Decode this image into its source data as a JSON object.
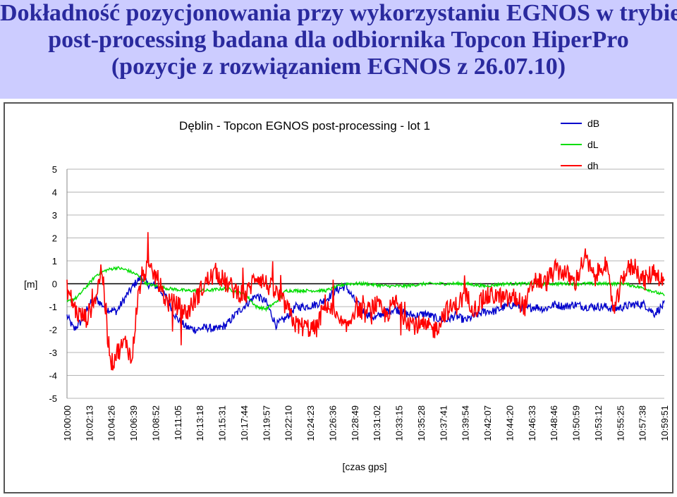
{
  "slide": {
    "title_lines": [
      "Dokładność pozycjonowania przy wykorzystaniu EGNOS w trybie",
      "post-processing badana dla odbiornika Topcon HiperPro",
      "(pozycje z rozwiązaniem EGNOS z 26.07.10)"
    ]
  },
  "chart_data": {
    "type": "line",
    "title": "Dęblin - Topcon EGNOS post-processing - lot 1",
    "xlabel": "[czas gps]",
    "ylabel": "[m]",
    "ylim": [
      -5,
      5
    ],
    "yticks": [
      "5",
      "4",
      "3",
      "2",
      "1",
      "0",
      "-1",
      "-2",
      "-3",
      "-4",
      "-5"
    ],
    "xticks": [
      "10:00:00",
      "10:02:13",
      "10:04:26",
      "10:06:39",
      "10:08:52",
      "10:11:05",
      "10:13:18",
      "10:15:31",
      "10:17:44",
      "10:19:57",
      "10:22:10",
      "10:24:23",
      "10:26:36",
      "10:28:49",
      "10:31:02",
      "10:33:15",
      "10:35:28",
      "10:37:41",
      "10:39:54",
      "10:42:07",
      "10:44:20",
      "10:46:33",
      "10:48:46",
      "10:50:59",
      "10:53:12",
      "10:55:25",
      "10:57:38",
      "10:59:51"
    ],
    "xlim_minutes": [
      0,
      60
    ],
    "grid": "horizontal",
    "legend_position": "top-right",
    "series_colors": {
      "dB": "#0000cc",
      "dL": "#00dd00",
      "dh": "#ff0000"
    },
    "series": [
      {
        "name": "dB",
        "noise": 0.18,
        "points": [
          [
            0,
            -1.4
          ],
          [
            0.7,
            -2.0
          ],
          [
            1.5,
            -1.6
          ],
          [
            2.2,
            -0.9
          ],
          [
            3.0,
            -0.7
          ],
          [
            4.0,
            -1.1
          ],
          [
            5.0,
            -1.2
          ],
          [
            6.0,
            -0.5
          ],
          [
            7.0,
            0.1
          ],
          [
            7.5,
            0.3
          ],
          [
            8.0,
            0.0
          ],
          [
            9.0,
            -0.1
          ],
          [
            10.0,
            -0.6
          ],
          [
            11.0,
            -1.5
          ],
          [
            12.0,
            -1.9
          ],
          [
            13.0,
            -2.0
          ],
          [
            14.0,
            -1.9
          ],
          [
            15.0,
            -2.0
          ],
          [
            16.0,
            -1.8
          ],
          [
            17.0,
            -1.3
          ],
          [
            18.0,
            -0.9
          ],
          [
            19.0,
            -0.5
          ],
          [
            20.0,
            -0.8
          ],
          [
            21.0,
            -1.8
          ],
          [
            22.0,
            -1.5
          ],
          [
            23.0,
            -1.0
          ],
          [
            24.0,
            -1.0
          ],
          [
            25.0,
            -0.9
          ],
          [
            26.0,
            -0.7
          ],
          [
            27.0,
            -0.3
          ],
          [
            28.0,
            -0.1
          ],
          [
            29.0,
            -0.8
          ],
          [
            30.0,
            -1.3
          ],
          [
            31.0,
            -1.5
          ],
          [
            32.0,
            -1.2
          ],
          [
            33.0,
            -1.1
          ],
          [
            34.0,
            -1.3
          ],
          [
            35.0,
            -1.4
          ],
          [
            36.0,
            -1.3
          ],
          [
            37.0,
            -1.5
          ],
          [
            38.0,
            -1.6
          ],
          [
            39.0,
            -1.4
          ],
          [
            40.0,
            -1.6
          ],
          [
            41.0,
            -1.4
          ],
          [
            42.0,
            -1.2
          ],
          [
            43.0,
            -1.2
          ],
          [
            44.0,
            -1.0
          ],
          [
            45.0,
            -0.9
          ],
          [
            46.0,
            -1.1
          ],
          [
            47.0,
            -1.0
          ],
          [
            48.0,
            -1.1
          ],
          [
            49.0,
            -0.9
          ],
          [
            50.0,
            -1.0
          ],
          [
            51.0,
            -0.9
          ],
          [
            52.0,
            -1.0
          ],
          [
            53.0,
            -1.0
          ],
          [
            54.0,
            -1.0
          ],
          [
            55.0,
            -1.1
          ],
          [
            56.0,
            -1.0
          ],
          [
            57.0,
            -0.9
          ],
          [
            58.0,
            -0.9
          ],
          [
            59.0,
            -1.3
          ],
          [
            60.0,
            -0.9
          ]
        ]
      },
      {
        "name": "dL",
        "noise": 0.07,
        "points": [
          [
            0,
            -0.8
          ],
          [
            1.0,
            -0.6
          ],
          [
            2.0,
            -0.1
          ],
          [
            3.0,
            0.4
          ],
          [
            4.0,
            0.6
          ],
          [
            5.0,
            0.7
          ],
          [
            6.0,
            0.6
          ],
          [
            7.0,
            0.4
          ],
          [
            8.0,
            0.0
          ],
          [
            10.0,
            -0.2
          ],
          [
            12.0,
            -0.3
          ],
          [
            14.0,
            -0.3
          ],
          [
            16.0,
            -0.2
          ],
          [
            18.0,
            -0.5
          ],
          [
            19.0,
            -1.0
          ],
          [
            20.0,
            -1.1
          ],
          [
            21.0,
            -0.8
          ],
          [
            22.0,
            -0.3
          ],
          [
            24.0,
            -0.3
          ],
          [
            26.0,
            -0.3
          ],
          [
            28.0,
            0.0
          ],
          [
            30.0,
            0.0
          ],
          [
            32.0,
            -0.1
          ],
          [
            34.0,
            -0.1
          ],
          [
            36.0,
            0.0
          ],
          [
            38.0,
            0.0
          ],
          [
            40.0,
            0.0
          ],
          [
            42.0,
            -0.1
          ],
          [
            44.0,
            0.0
          ],
          [
            46.0,
            0.0
          ],
          [
            48.0,
            0.0
          ],
          [
            50.0,
            0.0
          ],
          [
            52.0,
            0.0
          ],
          [
            54.0,
            0.0
          ],
          [
            56.0,
            0.0
          ],
          [
            58.0,
            -0.2
          ],
          [
            60.0,
            -0.5
          ]
        ]
      },
      {
        "name": "dh",
        "noise": 0.45,
        "points": [
          [
            0,
            -0.2
          ],
          [
            1.0,
            -1.3
          ],
          [
            2.0,
            -1.5
          ],
          [
            3.0,
            -0.4
          ],
          [
            3.5,
            0.8
          ],
          [
            4.0,
            -2.0
          ],
          [
            4.5,
            -3.5
          ],
          [
            5.0,
            -3.0
          ],
          [
            6.0,
            -2.5
          ],
          [
            6.5,
            -3.5
          ],
          [
            7.0,
            -1.0
          ],
          [
            7.5,
            0.3
          ],
          [
            8.0,
            0.6
          ],
          [
            9.0,
            0.3
          ],
          [
            10.0,
            -0.8
          ],
          [
            11.0,
            -0.9
          ],
          [
            12.0,
            -1.3
          ],
          [
            13.0,
            -0.6
          ],
          [
            14.0,
            0.1
          ],
          [
            15.0,
            0.5
          ],
          [
            16.0,
            0.0
          ],
          [
            17.0,
            -0.3
          ],
          [
            18.0,
            -0.5
          ],
          [
            19.0,
            0.4
          ],
          [
            20.0,
            0.0
          ],
          [
            21.0,
            -0.4
          ],
          [
            22.0,
            -1.0
          ],
          [
            23.0,
            -1.8
          ],
          [
            24.0,
            -1.9
          ],
          [
            25.0,
            -2.0
          ],
          [
            26.0,
            -0.8
          ],
          [
            27.0,
            -1.5
          ],
          [
            28.0,
            -2.0
          ],
          [
            29.0,
            -1.0
          ],
          [
            30.0,
            -1.3
          ],
          [
            31.0,
            -0.9
          ],
          [
            32.0,
            -1.4
          ],
          [
            33.0,
            -0.8
          ],
          [
            34.0,
            -1.5
          ],
          [
            35.0,
            -1.8
          ],
          [
            36.0,
            -1.9
          ],
          [
            37.0,
            -2.0
          ],
          [
            38.0,
            -1.2
          ],
          [
            39.0,
            -1.0
          ],
          [
            40.0,
            -0.5
          ],
          [
            41.0,
            -1.1
          ],
          [
            42.0,
            -0.6
          ],
          [
            43.0,
            -0.5
          ],
          [
            44.0,
            -0.7
          ],
          [
            45.0,
            -0.6
          ],
          [
            46.0,
            -1.0
          ],
          [
            47.0,
            0.2
          ],
          [
            48.0,
            0.0
          ],
          [
            49.0,
            0.6
          ],
          [
            50.0,
            0.5
          ],
          [
            51.0,
            0.0
          ],
          [
            52.0,
            1.2
          ],
          [
            53.0,
            0.2
          ],
          [
            54.0,
            1.0
          ],
          [
            55.0,
            -1.2
          ],
          [
            56.0,
            0.5
          ],
          [
            57.0,
            0.8
          ],
          [
            58.0,
            0.1
          ],
          [
            59.0,
            0.6
          ],
          [
            60.0,
            0.0
          ]
        ]
      }
    ]
  }
}
